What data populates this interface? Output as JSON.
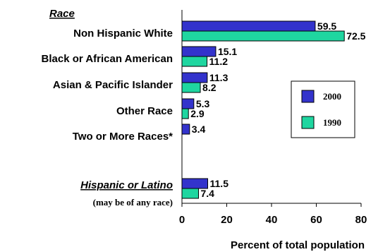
{
  "chart_data": {
    "type": "bar",
    "orientation": "horizontal",
    "section_labels": {
      "race": "Race",
      "hispanic": "Hispanic or Latino",
      "hispanic_note": "(may be of any race)"
    },
    "categories": [
      "Non Hispanic White",
      "Black or African American",
      "Asian & Pacific Islander",
      "Other Race",
      "Two or More Races*",
      "Hispanic or Latino"
    ],
    "series": [
      {
        "name": "2000",
        "color": "#3333cc",
        "values": [
          59.5,
          15.1,
          11.3,
          5.3,
          3.4,
          11.5
        ],
        "labels": [
          "59.5",
          "15.1",
          "11.3",
          "5.3",
          "3.4",
          "11.5"
        ]
      },
      {
        "name": "1990",
        "color": "#1fd6a0",
        "values": [
          72.5,
          11.2,
          8.2,
          2.9,
          null,
          7.4
        ],
        "labels": [
          "72.5",
          "11.2",
          "8.2",
          "2.9",
          "",
          "7.4"
        ]
      }
    ],
    "xlabel": "Percent of total population",
    "xlim": [
      0,
      80
    ],
    "xticks": [
      "0",
      "20",
      "40",
      "60",
      "80"
    ],
    "legend_position": "right"
  }
}
